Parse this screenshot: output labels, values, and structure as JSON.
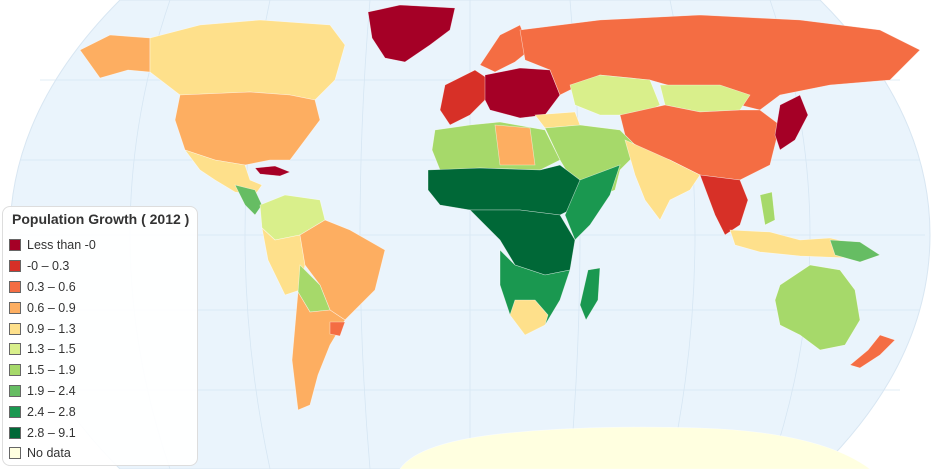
{
  "legend": {
    "title": "Population Growth ( 2012 )",
    "items": [
      {
        "label": "Less than -0",
        "color": "#a50026"
      },
      {
        "label": "-0 – 0.3",
        "color": "#d73027"
      },
      {
        "label": "0.3 – 0.6",
        "color": "#f46d43"
      },
      {
        "label": "0.6 – 0.9",
        "color": "#fdae61"
      },
      {
        "label": "0.9 – 1.3",
        "color": "#fee08b"
      },
      {
        "label": "1.3 – 1.5",
        "color": "#d9ef8b"
      },
      {
        "label": "1.5 – 1.9",
        "color": "#a6d96a"
      },
      {
        "label": "1.9 – 2.4",
        "color": "#66bd63"
      },
      {
        "label": "2.4 – 2.8",
        "color": "#1a9850"
      },
      {
        "label": "2.8 – 9.1",
        "color": "#006837"
      },
      {
        "label": "No data",
        "color": "#ffffe0"
      }
    ]
  },
  "map": {
    "ocean_color": "#eaf4fc",
    "projection": "robinson"
  }
}
